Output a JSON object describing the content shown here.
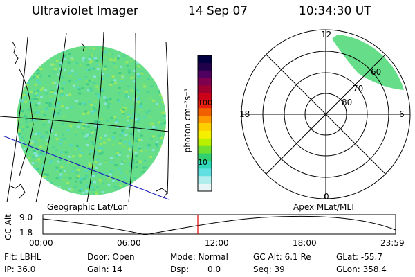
{
  "header": {
    "title": "Ultraviolet Imager",
    "date": "14 Sep 07",
    "time": "10:34:30 UT"
  },
  "geo_panel": {
    "caption": "Geographic Lat/Lon"
  },
  "colorbar": {
    "unit_label": "photon cm⁻²s⁻¹",
    "tick_labels": [
      "100",
      "10"
    ],
    "colors": [
      "#000040",
      "#20004a",
      "#500060",
      "#800050",
      "#a00030",
      "#cc0018",
      "#e82010",
      "#f06000",
      "#ff9900",
      "#ffd000",
      "#f4f000",
      "#b8f000",
      "#70e030",
      "#30d070",
      "#30d8b8",
      "#60e0e0",
      "#b0eeee",
      "#e6f6f6"
    ]
  },
  "polar_panel": {
    "caption": "Apex MLat/MLT",
    "mlt_labels": {
      "top": "12",
      "left": "18",
      "right": "6",
      "bottom": "0"
    },
    "lat_labels": [
      "80",
      "70",
      "60"
    ]
  },
  "altitude_plot": {
    "ylabel": "GC Alt",
    "yticks": [
      "9.0",
      "1.8"
    ],
    "xticks": [
      "00:00",
      "06:00",
      "12:00",
      "18:00",
      "23:59"
    ],
    "marker_color": "#e00000"
  },
  "info": {
    "flt": "Flt: LBHL",
    "ip": "IP: 36.0",
    "door": "Door: Open",
    "gain": "Gain: 14",
    "mode": "Mode: Normal",
    "dsp_label": "Dsp:",
    "dsp_value": "0.0",
    "gc_alt": "GC Alt: 6.1 Re",
    "seq": "Seq: 39",
    "glat": "GLat: -55.7",
    "glon": "GLon: 358.4"
  }
}
